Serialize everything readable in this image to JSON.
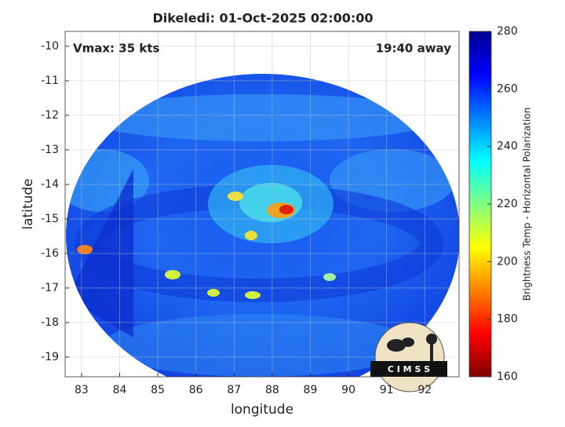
{
  "chart_data": {
    "type": "image",
    "title": "Dikeledi: 01-Oct-2025 02:00:00",
    "annotations": [
      "Vmax: 35 kts",
      "19:40 away"
    ],
    "xlabel": "longitude",
    "ylabel": "latitude",
    "xlim": [
      82.57,
      92.9
    ],
    "xticks": [
      83,
      84,
      85,
      86,
      87,
      88,
      89,
      90,
      91,
      92
    ],
    "ylim": [
      -19.57,
      -9.57
    ],
    "yticks": [
      -10,
      -11,
      -12,
      -13,
      -14,
      -15,
      -16,
      -17,
      -18,
      -19
    ],
    "grid": true,
    "colorbar": {
      "label": "Brightness Temp - Horizontal Polarization",
      "colormap": "jet_r",
      "clim": [
        160,
        280
      ],
      "ticks": [
        160,
        180,
        200,
        220,
        240,
        260,
        280
      ]
    },
    "logo_text": "C I M S S"
  }
}
